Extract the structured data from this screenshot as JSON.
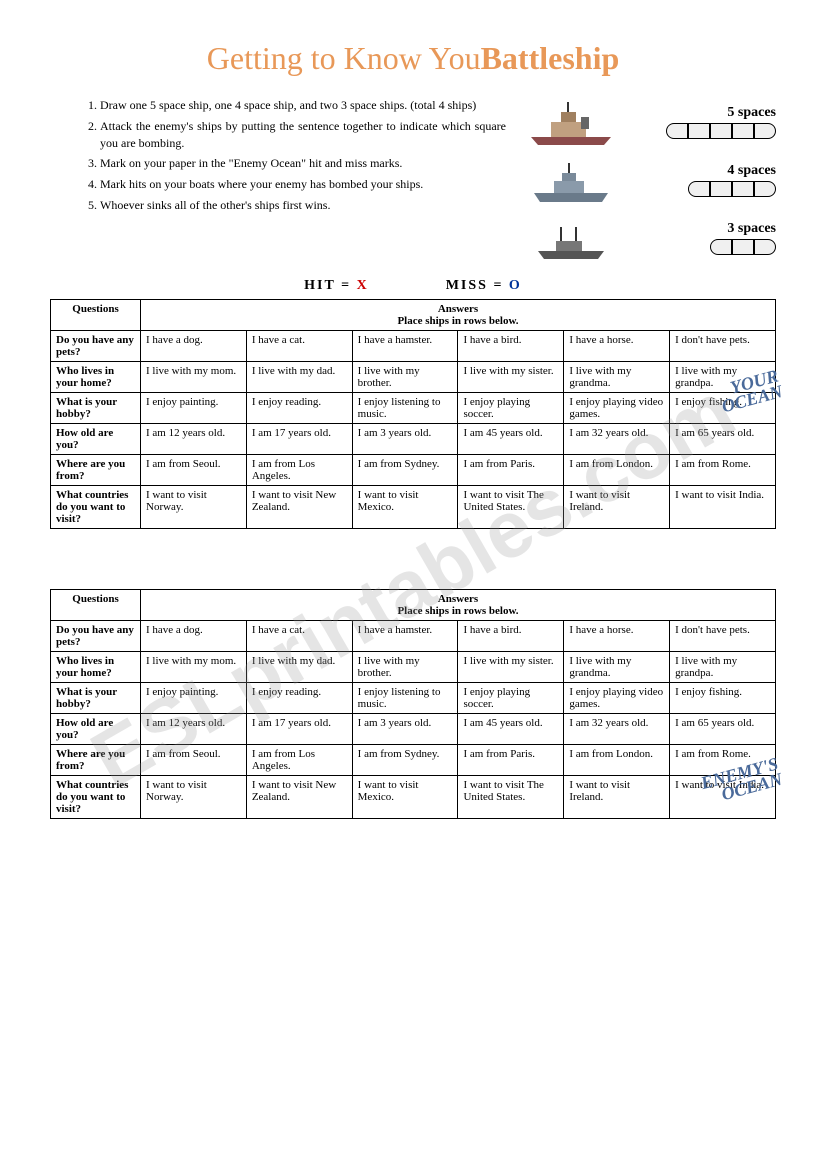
{
  "title_part1": "Getting to Know You",
  "title_part2": "Battleship",
  "instructions": [
    "Draw one 5 space ship, one 4 space ship, and two 3 space ships. (total 4 ships)",
    "Attack the enemy's ships by putting the sentence together to indicate which square you are bombing.",
    "Mark on your paper in the \"Enemy Ocean\" hit and miss marks.",
    "Mark hits on your boats where your enemy has bombed your ships.",
    "Whoever sinks all of the other's ships first wins."
  ],
  "ship_labels": [
    "5 spaces",
    "4 spaces",
    "3 spaces"
  ],
  "ship_counts": [
    5,
    4,
    3
  ],
  "hit_label": "HIT = ",
  "hit_mark": "X",
  "miss_label": "MISS = ",
  "miss_mark": "O",
  "your_ocean": "YOUR\nOCEAN",
  "enemy_ocean": "ENEMY'S\nOCEAN",
  "table_q_header": "Questions",
  "table_a_header": "Answers",
  "table_a_sub": "Place ships in rows below.",
  "colors": {
    "title": "#e89858",
    "hit": "#cc0000",
    "miss": "#003399",
    "ocean_label": "#4a6a9a",
    "watermark": "rgba(150,150,150,0.25)"
  },
  "watermark": "ESLprintables.com",
  "rows": [
    {
      "q": "Do you have any pets?",
      "a": [
        "I have a dog.",
        "I have a cat.",
        "I have a hamster.",
        "I have a bird.",
        "I have a horse.",
        "I don't have pets."
      ]
    },
    {
      "q": "Who lives in your home?",
      "a": [
        "I live with my mom.",
        "I live with my dad.",
        "I live with my brother.",
        "I live with my sister.",
        "I live with my grandma.",
        "I live with my grandpa."
      ]
    },
    {
      "q": "What is your hobby?",
      "a": [
        "I enjoy painting.",
        "I enjoy reading.",
        "I enjoy listening to music.",
        "I enjoy playing soccer.",
        "I enjoy playing video games.",
        "I enjoy fishing."
      ]
    },
    {
      "q": "How old are you?",
      "a": [
        "I am 12 years old.",
        "I am 17 years old.",
        "I am 3 years old.",
        "I am 45 years old.",
        "I am 32 years old.",
        "I am 65 years old."
      ]
    },
    {
      "q": "Where are you from?",
      "a": [
        "I am from Seoul.",
        "I am from Los Angeles.",
        "I am from Sydney.",
        "I am from Paris.",
        "I am from London.",
        "I am from Rome."
      ]
    },
    {
      "q": "What countries do you want to visit?",
      "a": [
        "I want to visit Norway.",
        "I want to visit New Zealand.",
        "I want to visit Mexico.",
        "I want to visit The United States.",
        "I want to visit Ireland.",
        "I want to visit India."
      ]
    }
  ]
}
